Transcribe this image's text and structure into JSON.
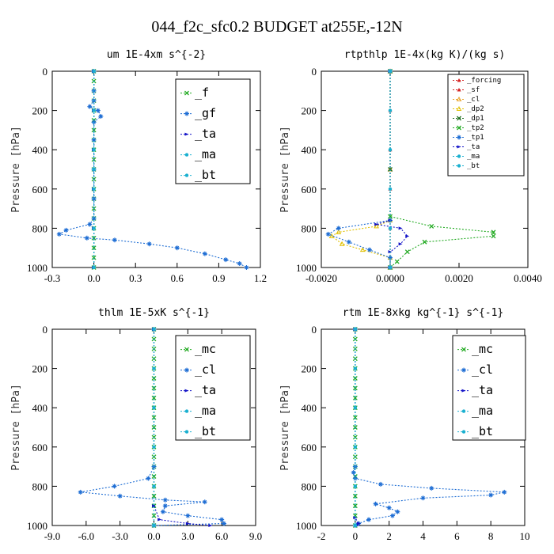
{
  "figure_title": "044_f2c_sfc0.2  BUDGET at255E,-12N",
  "colors": {
    "green": "#22aa22",
    "blue_dark": "#1414c8",
    "blue": "#1f6ed4",
    "cyan": "#1ab0d0",
    "red": "#d42020",
    "orange": "#e8a020",
    "yellow": "#e0c000",
    "dark_green": "#1a6a1a"
  },
  "chart_data": [
    {
      "type": "line",
      "title": "um  1E-4xm s^{-2}",
      "ylabel": "Pressure [hPa]",
      "xlim": [
        -0.3,
        1.2
      ],
      "ylim": [
        1000,
        0
      ],
      "xticks": [
        "-0.3",
        "0.0",
        "0.3",
        "0.6",
        "0.9",
        "1.2"
      ],
      "yticks": [
        "0",
        "200",
        "400",
        "600",
        "800",
        "1000"
      ],
      "legend_position": "top-right",
      "series": [
        {
          "name": "_f",
          "style": "green",
          "points": [
            [
              0,
              0
            ],
            [
              0,
              50
            ],
            [
              0,
              100
            ],
            [
              0,
              150
            ],
            [
              0,
              200
            ],
            [
              0,
              250
            ],
            [
              0,
              300
            ],
            [
              0,
              350
            ],
            [
              0,
              400
            ],
            [
              0,
              450
            ],
            [
              0,
              500
            ],
            [
              0,
              550
            ],
            [
              0,
              600
            ],
            [
              0,
              650
            ],
            [
              0,
              700
            ],
            [
              0,
              750
            ],
            [
              0,
              800
            ],
            [
              0,
              850
            ],
            [
              0,
              900
            ],
            [
              0,
              950
            ],
            [
              0,
              1000
            ]
          ]
        },
        {
          "name": "_gf",
          "style": "blue",
          "points": [
            [
              0,
              0
            ],
            [
              0,
              100
            ],
            [
              0,
              150
            ],
            [
              -0.03,
              180
            ],
            [
              0.03,
              200
            ],
            [
              0.05,
              230
            ],
            [
              0,
              260
            ],
            [
              0,
              350
            ],
            [
              0,
              500
            ],
            [
              0,
              650
            ],
            [
              0,
              750
            ],
            [
              -0.03,
              780
            ],
            [
              -0.2,
              810
            ],
            [
              -0.25,
              830
            ],
            [
              -0.05,
              850
            ],
            [
              0.15,
              860
            ],
            [
              0.4,
              880
            ],
            [
              0.6,
              900
            ],
            [
              0.8,
              930
            ],
            [
              0.95,
              960
            ],
            [
              1.05,
              980
            ],
            [
              1.1,
              1000
            ]
          ]
        },
        {
          "name": "_ta",
          "style": "blue_dark",
          "points": [
            [
              0,
              0
            ],
            [
              0,
              200
            ],
            [
              0,
              400
            ],
            [
              0,
              600
            ],
            [
              0,
              800
            ],
            [
              0,
              1000
            ]
          ]
        },
        {
          "name": "_ma",
          "style": "cyan",
          "points": [
            [
              0,
              0
            ],
            [
              0,
              500
            ],
            [
              0,
              1000
            ]
          ]
        },
        {
          "name": "_bt",
          "style": "cyan",
          "points": [
            [
              0,
              0
            ],
            [
              0,
              200
            ],
            [
              0,
              400
            ],
            [
              0,
              600
            ],
            [
              0,
              800
            ],
            [
              0,
              1000
            ]
          ]
        }
      ]
    },
    {
      "type": "line",
      "title": "rtpthlp  1E-4x(kg K)/(kg s)",
      "ylabel": "Pressure [hPa]",
      "xlim": [
        -0.002,
        0.004
      ],
      "ylim": [
        1000,
        0
      ],
      "xticks": [
        "-0.0020",
        "0.0000",
        "0.0020",
        "0.0040"
      ],
      "yticks": [
        "0",
        "200",
        "400",
        "600",
        "800",
        "1000"
      ],
      "legend_position": "top-right",
      "series": [
        {
          "name": "_forcing",
          "style": "red",
          "points": [
            [
              0,
              0
            ],
            [
              0,
              200
            ],
            [
              0,
              400
            ],
            [
              0,
              600
            ],
            [
              0,
              800
            ],
            [
              0,
              1000
            ]
          ]
        },
        {
          "name": "_sf",
          "style": "red",
          "points": [
            [
              0,
              0
            ],
            [
              0,
              500
            ],
            [
              0,
              1000
            ]
          ]
        },
        {
          "name": "_cl",
          "style": "orange",
          "points": [
            [
              0,
              0
            ],
            [
              0,
              500
            ],
            [
              0,
              1000
            ]
          ]
        },
        {
          "name": "_dp2",
          "style": "yellow",
          "points": [
            [
              0,
              0
            ],
            [
              0,
              760
            ],
            [
              -0.0004,
              790
            ],
            [
              -0.0015,
              820
            ],
            [
              -0.0017,
              840
            ],
            [
              -0.0014,
              880
            ],
            [
              -0.0008,
              910
            ],
            [
              0,
              950
            ],
            [
              0,
              1000
            ]
          ]
        },
        {
          "name": "_dp1",
          "style": "dark_green",
          "points": [
            [
              0,
              0
            ],
            [
              0,
              500
            ],
            [
              0,
              1000
            ]
          ]
        },
        {
          "name": "_tp2",
          "style": "green",
          "points": [
            [
              0,
              0
            ],
            [
              0,
              740
            ],
            [
              0.0012,
              790
            ],
            [
              0.003,
              820
            ],
            [
              0.003,
              840
            ],
            [
              0.001,
              870
            ],
            [
              0.0005,
              920
            ],
            [
              0.0002,
              970
            ],
            [
              0,
              1000
            ]
          ]
        },
        {
          "name": "_tp1",
          "style": "blue",
          "points": [
            [
              0,
              0
            ],
            [
              0,
              760
            ],
            [
              -0.0015,
              800
            ],
            [
              -0.0018,
              830
            ],
            [
              -0.0012,
              870
            ],
            [
              -0.0006,
              910
            ],
            [
              0,
              950
            ],
            [
              0,
              1000
            ]
          ]
        },
        {
          "name": "_ta",
          "style": "blue_dark",
          "points": [
            [
              0,
              0
            ],
            [
              0,
              760
            ],
            [
              -0.0004,
              780
            ],
            [
              0.0003,
              800
            ],
            [
              0.0005,
              840
            ],
            [
              0.0003,
              880
            ],
            [
              0,
              920
            ],
            [
              0,
              1000
            ]
          ]
        },
        {
          "name": "_ma",
          "style": "cyan",
          "points": [
            [
              0,
              0
            ],
            [
              0,
              1000
            ]
          ]
        },
        {
          "name": "_bt",
          "style": "cyan",
          "points": [
            [
              0,
              0
            ],
            [
              0,
              200
            ],
            [
              0,
              400
            ],
            [
              0,
              600
            ],
            [
              0,
              800
            ],
            [
              0,
              1000
            ]
          ]
        }
      ]
    },
    {
      "type": "line",
      "title": "thlm  1E-5xK s^{-1}",
      "ylabel": "Pressure [hPa]",
      "xlim": [
        -9.0,
        9.0
      ],
      "ylim": [
        1000,
        0
      ],
      "xticks": [
        "-9.0",
        "-6.0",
        "-3.0",
        "0.0",
        "3.0",
        "6.0",
        "9.0"
      ],
      "yticks": [
        "0",
        "200",
        "400",
        "600",
        "800",
        "1000"
      ],
      "legend_position": "top-right",
      "series": [
        {
          "name": "_mc",
          "style": "green",
          "points": [
            [
              0,
              0
            ],
            [
              0,
              50
            ],
            [
              0,
              100
            ],
            [
              0,
              150
            ],
            [
              0,
              200
            ],
            [
              0,
              250
            ],
            [
              0,
              300
            ],
            [
              0,
              350
            ],
            [
              0,
              400
            ],
            [
              0,
              450
            ],
            [
              0,
              500
            ],
            [
              0,
              550
            ],
            [
              0,
              600
            ],
            [
              0,
              650
            ],
            [
              0,
              700
            ],
            [
              0,
              750
            ],
            [
              0,
              800
            ],
            [
              0,
              850
            ],
            [
              0,
              900
            ],
            [
              0,
              950
            ],
            [
              0,
              1000
            ]
          ]
        },
        {
          "name": "_cl",
          "style": "blue",
          "points": [
            [
              0,
              0
            ],
            [
              0,
              700
            ],
            [
              -0.5,
              760
            ],
            [
              -3.5,
              800
            ],
            [
              -6.5,
              830
            ],
            [
              -3.0,
              850
            ],
            [
              1.0,
              870
            ],
            [
              4.5,
              880
            ],
            [
              1.0,
              900
            ],
            [
              0.8,
              930
            ],
            [
              3.0,
              950
            ],
            [
              6.0,
              970
            ],
            [
              6.2,
              990
            ],
            [
              0,
              1000
            ]
          ]
        },
        {
          "name": "_ta",
          "style": "blue_dark",
          "points": [
            [
              0,
              0
            ],
            [
              0,
              900
            ],
            [
              0.5,
              970
            ],
            [
              3.0,
              990
            ],
            [
              5.0,
              1000
            ]
          ]
        },
        {
          "name": "_ma",
          "style": "cyan",
          "points": [
            [
              0,
              0
            ],
            [
              0,
              1000
            ]
          ]
        },
        {
          "name": "_bt",
          "style": "cyan",
          "points": [
            [
              0,
              0
            ],
            [
              0,
              200
            ],
            [
              0,
              400
            ],
            [
              0,
              600
            ],
            [
              0,
              800
            ],
            [
              0,
              1000
            ]
          ]
        }
      ]
    },
    {
      "type": "line",
      "title": "rtm  1E-8xkg kg^{-1} s^{-1}",
      "ylabel": "Pressure [hPa]",
      "xlim": [
        -2,
        10
      ],
      "ylim": [
        1000,
        0
      ],
      "xticks": [
        "-2",
        "0",
        "2",
        "4",
        "6",
        "8",
        "10"
      ],
      "yticks": [
        "0",
        "200",
        "400",
        "600",
        "800",
        "1000"
      ],
      "legend_position": "top-right",
      "series": [
        {
          "name": "_mc",
          "style": "green",
          "points": [
            [
              0,
              0
            ],
            [
              0,
              50
            ],
            [
              0,
              100
            ],
            [
              0,
              150
            ],
            [
              0,
              200
            ],
            [
              0,
              250
            ],
            [
              0,
              300
            ],
            [
              0,
              350
            ],
            [
              0,
              400
            ],
            [
              0,
              450
            ],
            [
              0,
              500
            ],
            [
              0,
              550
            ],
            [
              0,
              600
            ],
            [
              0,
              650
            ],
            [
              0,
              700
            ],
            [
              0,
              750
            ],
            [
              0,
              800
            ],
            [
              0,
              850
            ],
            [
              0,
              900
            ],
            [
              0,
              950
            ],
            [
              0,
              1000
            ]
          ]
        },
        {
          "name": "_cl",
          "style": "blue",
          "points": [
            [
              0,
              0
            ],
            [
              0,
              700
            ],
            [
              -0.1,
              730
            ],
            [
              0,
              760
            ],
            [
              1.5,
              790
            ],
            [
              4.5,
              810
            ],
            [
              8.8,
              830
            ],
            [
              8.0,
              845
            ],
            [
              4.0,
              860
            ],
            [
              1.2,
              890
            ],
            [
              2.0,
              910
            ],
            [
              2.5,
              930
            ],
            [
              2.2,
              950
            ],
            [
              0.8,
              970
            ],
            [
              0.2,
              990
            ],
            [
              0,
              1000
            ]
          ]
        },
        {
          "name": "_ta",
          "style": "blue_dark",
          "points": [
            [
              0,
              0
            ],
            [
              0,
              960
            ],
            [
              0.2,
              990
            ],
            [
              0.1,
              1000
            ]
          ]
        },
        {
          "name": "_ma",
          "style": "cyan",
          "points": [
            [
              0,
              0
            ],
            [
              0,
              1000
            ]
          ]
        },
        {
          "name": "_bt",
          "style": "cyan",
          "points": [
            [
              0,
              0
            ],
            [
              0,
              200
            ],
            [
              0,
              400
            ],
            [
              0,
              600
            ],
            [
              0,
              800
            ],
            [
              0,
              1000
            ]
          ]
        }
      ]
    }
  ]
}
